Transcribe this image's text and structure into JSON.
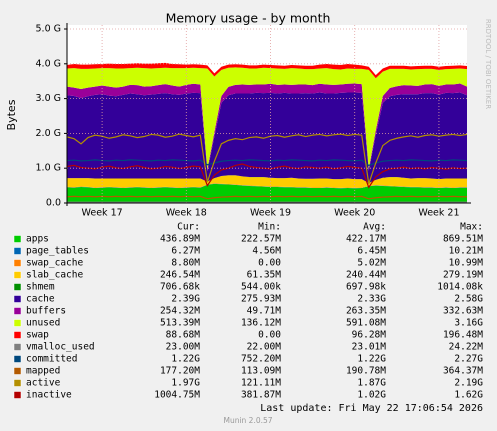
{
  "chart_data": {
    "type": "stacked-area",
    "title": "Memory usage - by month",
    "y_label": "Bytes",
    "side_text": "RRDTOOL / TOBI OETIKER",
    "last_update": "Last update: Fri May 22 17:06:54 2026",
    "footer": "Munin 2.0.57",
    "stat_headers": [
      "Cur:",
      "Min:",
      "Avg:",
      "Max:"
    ],
    "ylim": [
      0,
      5
    ],
    "yticks": [
      {
        "value": 0,
        "label": "0.0"
      },
      {
        "value": 1,
        "label": "1.0 G"
      },
      {
        "value": 2,
        "label": "2.0 G"
      },
      {
        "value": 3,
        "label": "3.0 G"
      },
      {
        "value": 4,
        "label": "4.0 G"
      },
      {
        "value": 5,
        "label": "5.0 G"
      }
    ],
    "grid": true,
    "categories": [
      null,
      null,
      null,
      null,
      null,
      "Week 17",
      null,
      null,
      null,
      null,
      null,
      null,
      null,
      null,
      null,
      null,
      null,
      "Week 18",
      null,
      null,
      null,
      null,
      null,
      null,
      null,
      null,
      null,
      null,
      null,
      "Week 19",
      null,
      null,
      null,
      null,
      null,
      null,
      null,
      null,
      null,
      null,
      null,
      "Week 20",
      null,
      null,
      null,
      null,
      null,
      null,
      null,
      null,
      null,
      null,
      null,
      "Week 21",
      null,
      null,
      null,
      null
    ],
    "series": [
      {
        "name": "apps",
        "color": "#00cc00",
        "kind": "area",
        "stats": [
          "436.89M",
          "222.57M",
          "422.17M",
          "869.51M"
        ],
        "values": [
          0.45,
          0.44,
          0.46,
          0.45,
          0.43,
          0.44,
          0.45,
          0.44,
          0.43,
          0.44,
          0.45,
          0.44,
          0.43,
          0.44,
          0.45,
          0.44,
          0.43,
          0.44,
          0.45,
          0.44,
          0.52,
          0.55,
          0.54,
          0.53,
          0.52,
          0.5,
          0.49,
          0.48,
          0.47,
          0.46,
          0.46,
          0.45,
          0.45,
          0.44,
          0.44,
          0.43,
          0.43,
          0.44,
          0.43,
          0.42,
          0.43,
          0.42,
          0.43,
          0.48,
          0.5,
          0.49,
          0.48,
          0.47,
          0.46,
          0.45,
          0.45,
          0.44,
          0.44,
          0.43,
          0.44,
          0.43,
          0.44,
          0.44
        ]
      },
      {
        "name": "page_tables",
        "color": "#0066b3",
        "kind": "area",
        "stats": [
          "6.27M",
          "4.56M",
          "6.45M",
          "10.21M"
        ],
        "values": [
          0.006,
          0.006,
          0.006,
          0.006,
          0.006,
          0.006,
          0.006,
          0.006,
          0.006,
          0.006,
          0.006,
          0.006,
          0.006,
          0.006,
          0.006,
          0.006,
          0.006,
          0.006,
          0.006,
          0.006,
          0.006,
          0.006,
          0.006,
          0.006,
          0.006,
          0.006,
          0.006,
          0.006,
          0.006,
          0.006,
          0.006,
          0.006,
          0.006,
          0.006,
          0.006,
          0.006,
          0.006,
          0.006,
          0.006,
          0.006,
          0.006,
          0.006,
          0.006,
          0.006,
          0.006,
          0.006,
          0.006,
          0.006,
          0.006,
          0.006,
          0.006,
          0.006,
          0.006,
          0.006,
          0.006,
          0.006,
          0.006,
          0.006
        ]
      },
      {
        "name": "swap_cache",
        "color": "#ff8000",
        "kind": "area",
        "stats": [
          "8.80M",
          "0.00",
          "5.02M",
          "10.99M"
        ],
        "values": [
          0.009,
          0.009,
          0.009,
          0.009,
          0.009,
          0.009,
          0.009,
          0.009,
          0.009,
          0.009,
          0.009,
          0.009,
          0.009,
          0.009,
          0.009,
          0.009,
          0.009,
          0.009,
          0.009,
          0.009,
          0.009,
          0.009,
          0.009,
          0.009,
          0.009,
          0.009,
          0.009,
          0.009,
          0.009,
          0.009,
          0.009,
          0.009,
          0.009,
          0.009,
          0.009,
          0.009,
          0.009,
          0.009,
          0.009,
          0.009,
          0.009,
          0.009,
          0.009,
          0.009,
          0.009,
          0.009,
          0.009,
          0.009,
          0.009,
          0.009,
          0.009,
          0.009,
          0.009,
          0.009,
          0.009,
          0.009,
          0.009,
          0.009
        ]
      },
      {
        "name": "slab_cache",
        "color": "#ffcc00",
        "kind": "area",
        "stats": [
          "246.54M",
          "61.35M",
          "240.44M",
          "279.19M"
        ],
        "values": [
          0.25,
          0.26,
          0.24,
          0.25,
          0.26,
          0.25,
          0.24,
          0.25,
          0.26,
          0.25,
          0.24,
          0.25,
          0.26,
          0.25,
          0.24,
          0.25,
          0.26,
          0.25,
          0.24,
          0.25,
          0.08,
          0.15,
          0.22,
          0.25,
          0.26,
          0.25,
          0.24,
          0.25,
          0.26,
          0.25,
          0.24,
          0.25,
          0.26,
          0.25,
          0.24,
          0.25,
          0.26,
          0.25,
          0.24,
          0.25,
          0.26,
          0.25,
          0.24,
          0.08,
          0.15,
          0.22,
          0.25,
          0.26,
          0.25,
          0.24,
          0.25,
          0.26,
          0.25,
          0.24,
          0.25,
          0.26,
          0.25,
          0.25
        ]
      },
      {
        "name": "shmem",
        "color": "#008f00",
        "kind": "area",
        "stats": [
          "706.68k",
          "544.00k",
          "697.98k",
          "1014.08k"
        ],
        "values": [
          0.0007,
          0.0007,
          0.0007,
          0.0007,
          0.0007,
          0.0007,
          0.0007,
          0.0007,
          0.0007,
          0.0007,
          0.0007,
          0.0007,
          0.0007,
          0.0007,
          0.0007,
          0.0007,
          0.0007,
          0.0007,
          0.0007,
          0.0007,
          0.0007,
          0.0007,
          0.0007,
          0.0007,
          0.0007,
          0.0007,
          0.0007,
          0.0007,
          0.0007,
          0.0007,
          0.0007,
          0.0007,
          0.0007,
          0.0007,
          0.0007,
          0.0007,
          0.0007,
          0.0007,
          0.0007,
          0.0007,
          0.0007,
          0.0007,
          0.0007,
          0.0007,
          0.0007,
          0.0007,
          0.0007,
          0.0007,
          0.0007,
          0.0007,
          0.0007,
          0.0007,
          0.0007,
          0.0007,
          0.0007,
          0.0007,
          0.0007,
          0.0007
        ]
      },
      {
        "name": "cache",
        "color": "#330099",
        "kind": "area",
        "stats": [
          "2.39G",
          "275.93M",
          "2.33G",
          "2.58G"
        ],
        "values": [
          2.38,
          2.36,
          2.3,
          2.35,
          2.4,
          2.42,
          2.38,
          2.36,
          2.4,
          2.44,
          2.42,
          2.39,
          2.41,
          2.43,
          2.45,
          2.42,
          2.4,
          2.44,
          2.46,
          2.45,
          0.3,
          1.2,
          2.1,
          2.3,
          2.35,
          2.38,
          2.4,
          2.42,
          2.41,
          2.44,
          2.43,
          2.45,
          2.42,
          2.44,
          2.46,
          2.45,
          2.47,
          2.44,
          2.46,
          2.48,
          2.47,
          2.49,
          2.48,
          0.35,
          1.3,
          2.15,
          2.32,
          2.36,
          2.4,
          2.42,
          2.41,
          2.44,
          2.45,
          2.43,
          2.46,
          2.45,
          2.47,
          2.39
        ]
      },
      {
        "name": "buffers",
        "color": "#990099",
        "kind": "area",
        "stats": [
          "254.32M",
          "49.71M",
          "263.35M",
          "332.63M"
        ],
        "values": [
          0.25,
          0.24,
          0.26,
          0.25,
          0.24,
          0.25,
          0.26,
          0.25,
          0.24,
          0.25,
          0.26,
          0.25,
          0.24,
          0.25,
          0.26,
          0.25,
          0.24,
          0.25,
          0.26,
          0.25,
          0.05,
          0.12,
          0.2,
          0.24,
          0.25,
          0.26,
          0.25,
          0.24,
          0.25,
          0.26,
          0.25,
          0.24,
          0.25,
          0.26,
          0.25,
          0.24,
          0.25,
          0.26,
          0.25,
          0.24,
          0.25,
          0.26,
          0.25,
          0.05,
          0.12,
          0.2,
          0.24,
          0.25,
          0.26,
          0.25,
          0.24,
          0.25,
          0.26,
          0.25,
          0.24,
          0.25,
          0.26,
          0.25
        ]
      },
      {
        "name": "unused",
        "color": "#ccff00",
        "kind": "area",
        "stats": [
          "513.39M",
          "136.12M",
          "591.08M",
          "3.16G"
        ],
        "values": [
          0.52,
          0.56,
          0.58,
          0.54,
          0.52,
          0.5,
          0.53,
          0.55,
          0.52,
          0.48,
          0.5,
          0.53,
          0.51,
          0.49,
          0.47,
          0.5,
          0.53,
          0.48,
          0.46,
          0.47,
          2.9,
          1.6,
          0.75,
          0.55,
          0.5,
          0.48,
          0.47,
          0.46,
          0.48,
          0.45,
          0.47,
          0.45,
          0.48,
          0.46,
          0.44,
          0.46,
          0.44,
          0.47,
          0.45,
          0.43,
          0.44,
          0.42,
          0.44,
          2.85,
          1.5,
          0.7,
          0.55,
          0.5,
          0.47,
          0.46,
          0.48,
          0.45,
          0.44,
          0.46,
          0.44,
          0.45,
          0.43,
          0.5
        ]
      },
      {
        "name": "swap",
        "color": "#ff0000",
        "kind": "area",
        "stats": [
          "88.68M",
          "0.00",
          "96.28M",
          "196.48M"
        ],
        "values": [
          0.1,
          0.12,
          0.12,
          0.12,
          0.12,
          0.12,
          0.13,
          0.13,
          0.13,
          0.13,
          0.13,
          0.13,
          0.14,
          0.14,
          0.14,
          0.12,
          0.11,
          0.1,
          0.1,
          0.1,
          0.09,
          0.09,
          0.09,
          0.09,
          0.09,
          0.09,
          0.09,
          0.09,
          0.09,
          0.09,
          0.09,
          0.09,
          0.09,
          0.09,
          0.1,
          0.1,
          0.11,
          0.12,
          0.13,
          0.13,
          0.13,
          0.12,
          0.1,
          0.09,
          0.09,
          0.09,
          0.09,
          0.09,
          0.09,
          0.09,
          0.09,
          0.09,
          0.09,
          0.09,
          0.09,
          0.09,
          0.09,
          0.09
        ]
      },
      {
        "name": "vmalloc_used",
        "color": "#808080",
        "kind": "line",
        "stats": [
          "23.00M",
          "22.00M",
          "23.01M",
          "24.22M"
        ],
        "values": [
          0.023,
          0.023,
          0.023,
          0.023,
          0.023,
          0.023,
          0.023,
          0.023,
          0.023,
          0.023,
          0.023,
          0.023,
          0.023,
          0.023,
          0.023,
          0.023,
          0.023,
          0.023,
          0.023,
          0.023,
          0.023,
          0.023,
          0.023,
          0.023,
          0.023,
          0.023,
          0.023,
          0.023,
          0.023,
          0.023,
          0.023,
          0.023,
          0.023,
          0.023,
          0.023,
          0.023,
          0.023,
          0.023,
          0.023,
          0.023,
          0.023,
          0.023,
          0.023,
          0.023,
          0.023,
          0.023,
          0.023,
          0.023,
          0.023,
          0.023,
          0.023,
          0.023,
          0.023,
          0.023,
          0.023,
          0.023,
          0.023,
          0.023
        ]
      },
      {
        "name": "committed",
        "color": "#00487d",
        "kind": "line",
        "stats": [
          "1.22G",
          "752.20M",
          "1.22G",
          "2.27G"
        ],
        "values": [
          1.22,
          1.23,
          1.21,
          1.22,
          1.24,
          1.22,
          1.21,
          1.23,
          1.22,
          1.24,
          1.23,
          1.22,
          1.21,
          1.23,
          1.22,
          1.24,
          1.23,
          1.22,
          1.21,
          1.23,
          1.1,
          1.15,
          1.2,
          1.22,
          1.23,
          1.22,
          1.24,
          1.23,
          1.22,
          1.21,
          1.23,
          1.22,
          1.24,
          1.23,
          1.22,
          1.21,
          1.23,
          1.22,
          1.24,
          1.23,
          1.22,
          1.21,
          1.23,
          1.08,
          1.15,
          1.2,
          1.22,
          1.23,
          1.22,
          1.24,
          1.23,
          1.22,
          1.21,
          1.23,
          1.22,
          1.24,
          1.23,
          1.22
        ]
      },
      {
        "name": "mapped",
        "color": "#b35a00",
        "kind": "line",
        "stats": [
          "177.20M",
          "113.09M",
          "190.78M",
          "364.37M"
        ],
        "values": [
          0.18,
          0.19,
          0.18,
          0.19,
          0.18,
          0.19,
          0.18,
          0.19,
          0.18,
          0.19,
          0.18,
          0.19,
          0.18,
          0.19,
          0.18,
          0.19,
          0.18,
          0.19,
          0.18,
          0.19,
          0.12,
          0.15,
          0.17,
          0.18,
          0.19,
          0.18,
          0.19,
          0.18,
          0.19,
          0.18,
          0.19,
          0.18,
          0.19,
          0.18,
          0.19,
          0.18,
          0.19,
          0.18,
          0.19,
          0.18,
          0.19,
          0.18,
          0.19,
          0.12,
          0.15,
          0.17,
          0.18,
          0.19,
          0.18,
          0.19,
          0.18,
          0.19,
          0.18,
          0.19,
          0.18,
          0.19,
          0.18,
          0.18
        ]
      },
      {
        "name": "active",
        "color": "#b38f00",
        "kind": "line",
        "stats": [
          "1.97G",
          "121.11M",
          "1.87G",
          "2.19G"
        ],
        "values": [
          1.9,
          1.85,
          1.7,
          1.88,
          1.95,
          1.92,
          1.86,
          1.9,
          1.96,
          1.93,
          1.88,
          1.91,
          1.97,
          1.95,
          1.89,
          1.92,
          1.98,
          1.94,
          1.9,
          1.95,
          0.6,
          1.2,
          1.7,
          1.8,
          1.85,
          1.82,
          1.88,
          1.9,
          1.86,
          1.92,
          1.94,
          1.89,
          1.93,
          1.96,
          1.91,
          1.95,
          1.97,
          1.93,
          1.96,
          1.98,
          1.94,
          1.97,
          1.95,
          0.55,
          1.15,
          1.65,
          1.8,
          1.86,
          1.9,
          1.93,
          1.89,
          1.94,
          1.96,
          1.92,
          1.95,
          1.97,
          1.94,
          1.97
        ]
      },
      {
        "name": "inactive",
        "color": "#b30000",
        "kind": "line",
        "stats": [
          "1004.75M",
          "381.87M",
          "1.02G",
          "1.62G"
        ],
        "values": [
          1.05,
          1.08,
          1.02,
          1.0,
          0.98,
          1.03,
          1.06,
          1.01,
          0.99,
          1.04,
          1.07,
          1.02,
          0.98,
          1.0,
          1.05,
          1.03,
          0.99,
          1.02,
          1.06,
          1.04,
          0.5,
          0.8,
          0.95,
          1.0,
          1.08,
          1.12,
          1.05,
          1.02,
          1.0,
          0.98,
          1.03,
          1.06,
          1.01,
          0.99,
          1.04,
          1.02,
          1.0,
          1.03,
          0.98,
          1.01,
          1.05,
          1.02,
          1.0,
          0.45,
          0.75,
          0.9,
          0.98,
          1.0,
          1.03,
          0.99,
          1.01,
          0.98,
          1.02,
          1.0,
          0.97,
          1.01,
          0.99,
          1.0
        ]
      }
    ]
  }
}
